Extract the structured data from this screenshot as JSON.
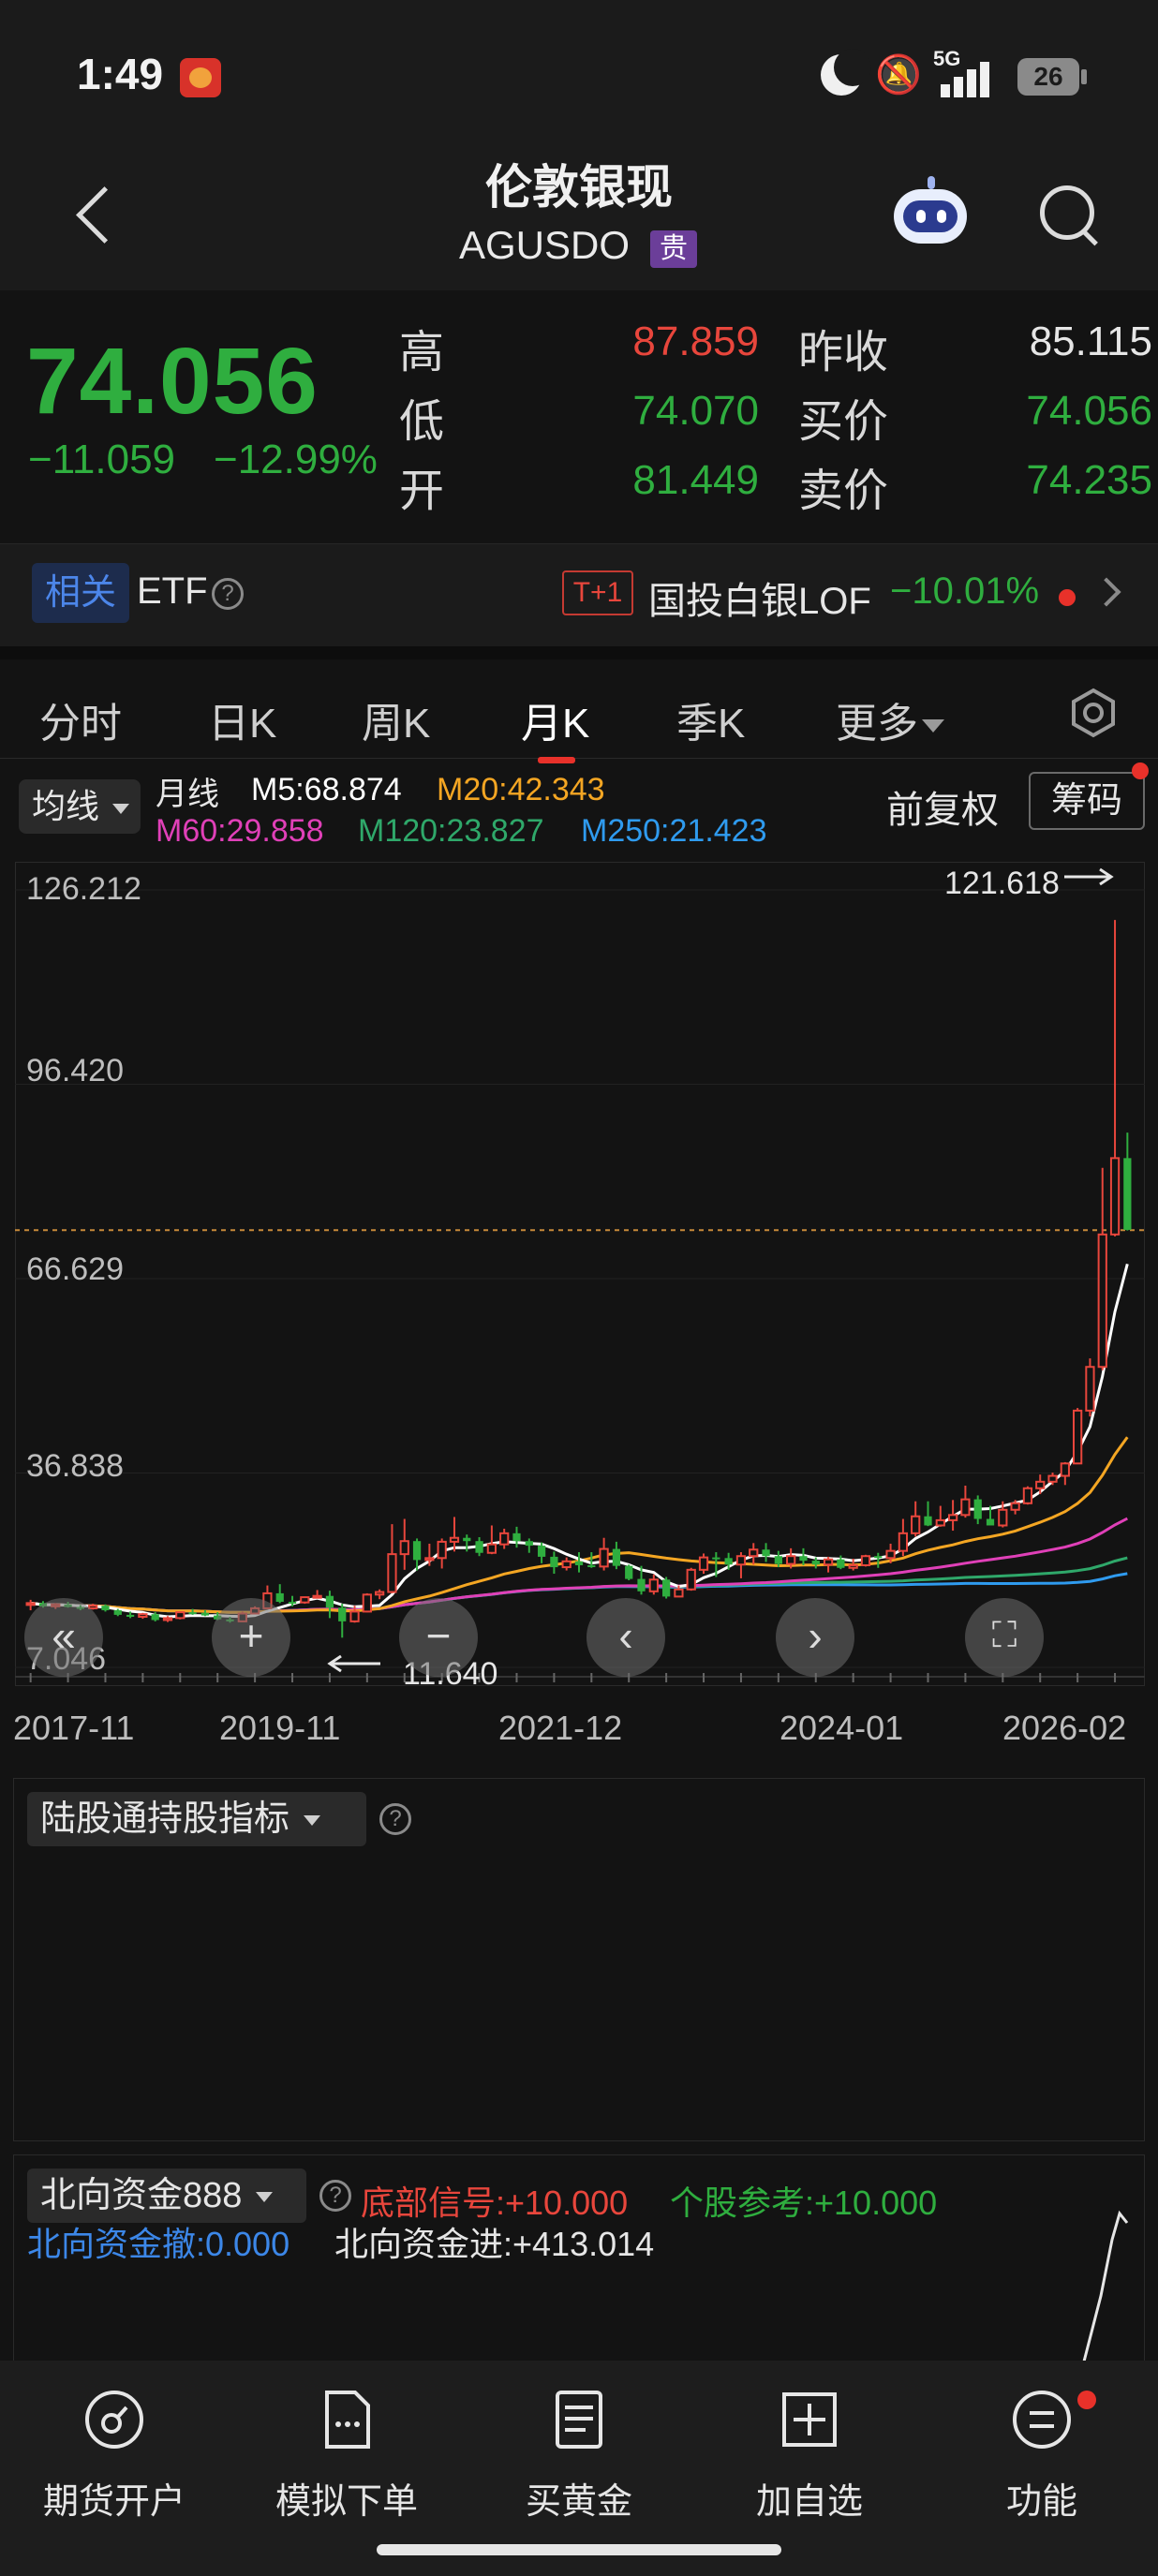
{
  "status_bar": {
    "time": "1:49",
    "network": "5G",
    "battery": "26"
  },
  "header": {
    "title": "伦敦银现",
    "symbol": "AGUSDO",
    "tag": "贵"
  },
  "quote": {
    "price": "74.056",
    "change": "−11.059",
    "change_pct": "−12.99%",
    "fields": [
      {
        "label": "高",
        "value": "87.859",
        "color": "#e8463c"
      },
      {
        "label": "低",
        "value": "74.070",
        "color": "#2fae3f"
      },
      {
        "label": "开",
        "value": "81.449",
        "color": "#2fae3f"
      },
      {
        "label": "昨收",
        "value": "85.115",
        "color": "#e6e6e6"
      },
      {
        "label": "买价",
        "value": "74.056",
        "color": "#2fae3f"
      },
      {
        "label": "卖价",
        "value": "74.235",
        "color": "#2fae3f"
      }
    ]
  },
  "related": {
    "tag": "相关",
    "etf": "ETF",
    "help": "?",
    "t1": "T+1",
    "fund_name": "国投白银LOF",
    "fund_change": "−10.01%"
  },
  "tabs": [
    {
      "label": "分时"
    },
    {
      "label": "日K"
    },
    {
      "label": "周K"
    },
    {
      "label": "月K",
      "active": true
    },
    {
      "label": "季K"
    },
    {
      "label": "更多"
    }
  ],
  "ma": {
    "button": "均线",
    "period": "月线",
    "items": [
      {
        "label": "M5:68.874",
        "color": "#ffffff"
      },
      {
        "label": "M20:42.343",
        "color": "#f4a623"
      },
      {
        "label": "M60:29.858",
        "color": "#e040b8"
      },
      {
        "label": "M120:23.827",
        "color": "#2fa86a"
      },
      {
        "label": "M250:21.423",
        "color": "#2f9bef"
      }
    ],
    "adjust": "前复权",
    "chip_button": "筹码"
  },
  "chart_data": {
    "type": "candlestick",
    "period": "monthly",
    "y_ticks": [
      "126.212",
      "96.420",
      "66.629",
      "36.838",
      "7.046"
    ],
    "x_ticks": [
      "2017-11",
      "2019-11",
      "2021-12",
      "2024-01",
      "2026-02"
    ],
    "ylim": [
      7.046,
      126.212
    ],
    "high_annotation": "121.618",
    "low_annotation": "11.640",
    "current_price_line": 74.056,
    "candles": [
      [
        16.8,
        17.4,
        15.8,
        16.9
      ],
      [
        16.9,
        17.2,
        16.2,
        16.4
      ],
      [
        16.4,
        16.9,
        16.0,
        16.7
      ],
      [
        16.7,
        17.1,
        16.2,
        16.3
      ],
      [
        16.3,
        16.6,
        15.8,
        16.1
      ],
      [
        16.1,
        16.8,
        15.9,
        16.5
      ],
      [
        16.5,
        16.7,
        15.6,
        15.8
      ],
      [
        15.8,
        16.0,
        14.9,
        15.1
      ],
      [
        15.1,
        15.6,
        14.6,
        14.8
      ],
      [
        14.8,
        15.4,
        14.5,
        15.2
      ],
      [
        15.2,
        15.5,
        14.1,
        14.3
      ],
      [
        14.3,
        14.9,
        14.0,
        14.6
      ],
      [
        14.6,
        15.6,
        14.4,
        15.5
      ],
      [
        15.5,
        16.0,
        15.1,
        15.4
      ],
      [
        15.4,
        15.8,
        14.9,
        15.0
      ],
      [
        15.0,
        15.5,
        14.3,
        14.4
      ],
      [
        14.4,
        14.8,
        13.9,
        14.1
      ],
      [
        14.1,
        15.6,
        14.0,
        15.3
      ],
      [
        15.3,
        16.4,
        15.2,
        16.1
      ],
      [
        16.1,
        19.6,
        16.0,
        18.4
      ],
      [
        18.4,
        19.8,
        16.9,
        17.1
      ],
      [
        17.1,
        18.0,
        16.4,
        17.0
      ],
      [
        17.0,
        17.9,
        16.8,
        17.8
      ],
      [
        17.8,
        18.9,
        17.6,
        18.0
      ],
      [
        18.0,
        18.8,
        14.6,
        16.2
      ],
      [
        16.2,
        16.8,
        11.6,
        14.1
      ],
      [
        14.1,
        16.5,
        13.9,
        15.6
      ],
      [
        15.6,
        18.4,
        15.5,
        18.2
      ],
      [
        18.2,
        19.0,
        17.5,
        18.6
      ],
      [
        18.6,
        29.0,
        18.4,
        24.4
      ],
      [
        24.4,
        29.8,
        22.0,
        26.4
      ],
      [
        26.4,
        26.8,
        21.9,
        23.5
      ],
      [
        23.5,
        26.0,
        22.6,
        23.8
      ],
      [
        23.8,
        26.8,
        22.2,
        26.3
      ],
      [
        26.3,
        30.1,
        24.8,
        26.9
      ],
      [
        26.9,
        27.4,
        24.8,
        26.4
      ],
      [
        26.4,
        27.0,
        24.1,
        24.6
      ],
      [
        24.6,
        28.8,
        24.4,
        25.9
      ],
      [
        25.9,
        28.3,
        25.2,
        27.6
      ],
      [
        27.6,
        28.6,
        25.4,
        26.4
      ],
      [
        26.4,
        26.8,
        24.6,
        25.7
      ],
      [
        25.7,
        26.2,
        23.0,
        24.0
      ],
      [
        24.0,
        24.8,
        21.4,
        22.4
      ],
      [
        22.4,
        23.9,
        21.9,
        23.3
      ],
      [
        23.3,
        24.7,
        21.6,
        22.7
      ],
      [
        22.7,
        24.7,
        22.3,
        22.5
      ],
      [
        22.5,
        26.9,
        21.9,
        25.2
      ],
      [
        25.2,
        26.3,
        22.1,
        22.6
      ],
      [
        22.6,
        22.8,
        20.4,
        20.6
      ],
      [
        20.6,
        22.6,
        18.2,
        18.7
      ],
      [
        18.7,
        21.3,
        18.2,
        20.5
      ],
      [
        20.5,
        20.9,
        17.6,
        17.9
      ],
      [
        17.9,
        19.6,
        17.9,
        19.0
      ],
      [
        19.0,
        22.3,
        18.8,
        22.0
      ],
      [
        22.0,
        24.5,
        21.4,
        23.9
      ],
      [
        23.9,
        24.7,
        20.9,
        23.8
      ],
      [
        23.8,
        24.6,
        22.0,
        22.8
      ],
      [
        22.8,
        24.7,
        20.7,
        24.1
      ],
      [
        24.1,
        26.1,
        22.8,
        25.1
      ],
      [
        25.1,
        26.1,
        23.2,
        24.1
      ],
      [
        24.1,
        24.9,
        22.4,
        22.9
      ],
      [
        22.9,
        25.3,
        22.2,
        24.1
      ],
      [
        24.1,
        25.3,
        22.7,
        23.4
      ],
      [
        23.4,
        23.9,
        22.2,
        22.8
      ],
      [
        22.8,
        24.0,
        21.6,
        23.6
      ],
      [
        23.6,
        24.2,
        22.1,
        22.3
      ],
      [
        22.3,
        23.7,
        21.9,
        22.7
      ],
      [
        22.7,
        24.3,
        22.5,
        24.1
      ],
      [
        24.1,
        24.6,
        22.3,
        23.8
      ],
      [
        23.8,
        26.0,
        23.0,
        24.9
      ],
      [
        24.9,
        29.8,
        24.1,
        27.6
      ],
      [
        27.6,
        32.5,
        27.1,
        30.2
      ],
      [
        30.2,
        32.5,
        28.7,
        28.8
      ],
      [
        28.8,
        31.8,
        28.6,
        29.6
      ],
      [
        29.6,
        32.7,
        28.0,
        30.4
      ],
      [
        30.4,
        34.9,
        30.0,
        32.8
      ],
      [
        32.8,
        33.4,
        29.0,
        29.8
      ],
      [
        29.8,
        31.8,
        28.8,
        28.8
      ],
      [
        28.8,
        32.5,
        28.5,
        31.2
      ],
      [
        31.2,
        32.7,
        30.5,
        32.2
      ],
      [
        32.2,
        34.8,
        32.0,
        34.5
      ],
      [
        34.5,
        36.6,
        33.6,
        35.5
      ],
      [
        35.5,
        36.9,
        35.0,
        36.4
      ],
      [
        36.4,
        38.5,
        35.0,
        38.3
      ],
      [
        38.3,
        46.8,
        38.2,
        46.4
      ],
      [
        46.4,
        54.4,
        45.5,
        53.1
      ],
      [
        53.1,
        83.6,
        52.6,
        73.4
      ],
      [
        73.4,
        121.6,
        73.1,
        85.1
      ],
      [
        85.1,
        89.0,
        74.0,
        74.1
      ]
    ],
    "ma_series": {
      "M5_end": 68.874,
      "M20_end": 42.343,
      "M60_end": 29.858,
      "M120_end": 23.827,
      "M250_end": 21.423
    }
  },
  "indicator_panel": {
    "selector": "陆股通持股指标",
    "help": "?"
  },
  "north_panel": {
    "selector": "北向资金888",
    "help": "?",
    "signal_bottom": "底部信号:+10.000",
    "signal_stock": "个股参考:+10.000",
    "outflow": "北向资金撤:0.000",
    "inflow": "北向资金进:+413.014"
  },
  "bottom_nav": [
    {
      "label": "期货开户",
      "icon": "futures-account-icon"
    },
    {
      "label": "模拟下单",
      "icon": "simulated-order-icon"
    },
    {
      "label": "买黄金",
      "icon": "buy-gold-icon"
    },
    {
      "label": "加自选",
      "icon": "add-watchlist-icon"
    },
    {
      "label": "功能",
      "icon": "functions-icon"
    }
  ]
}
